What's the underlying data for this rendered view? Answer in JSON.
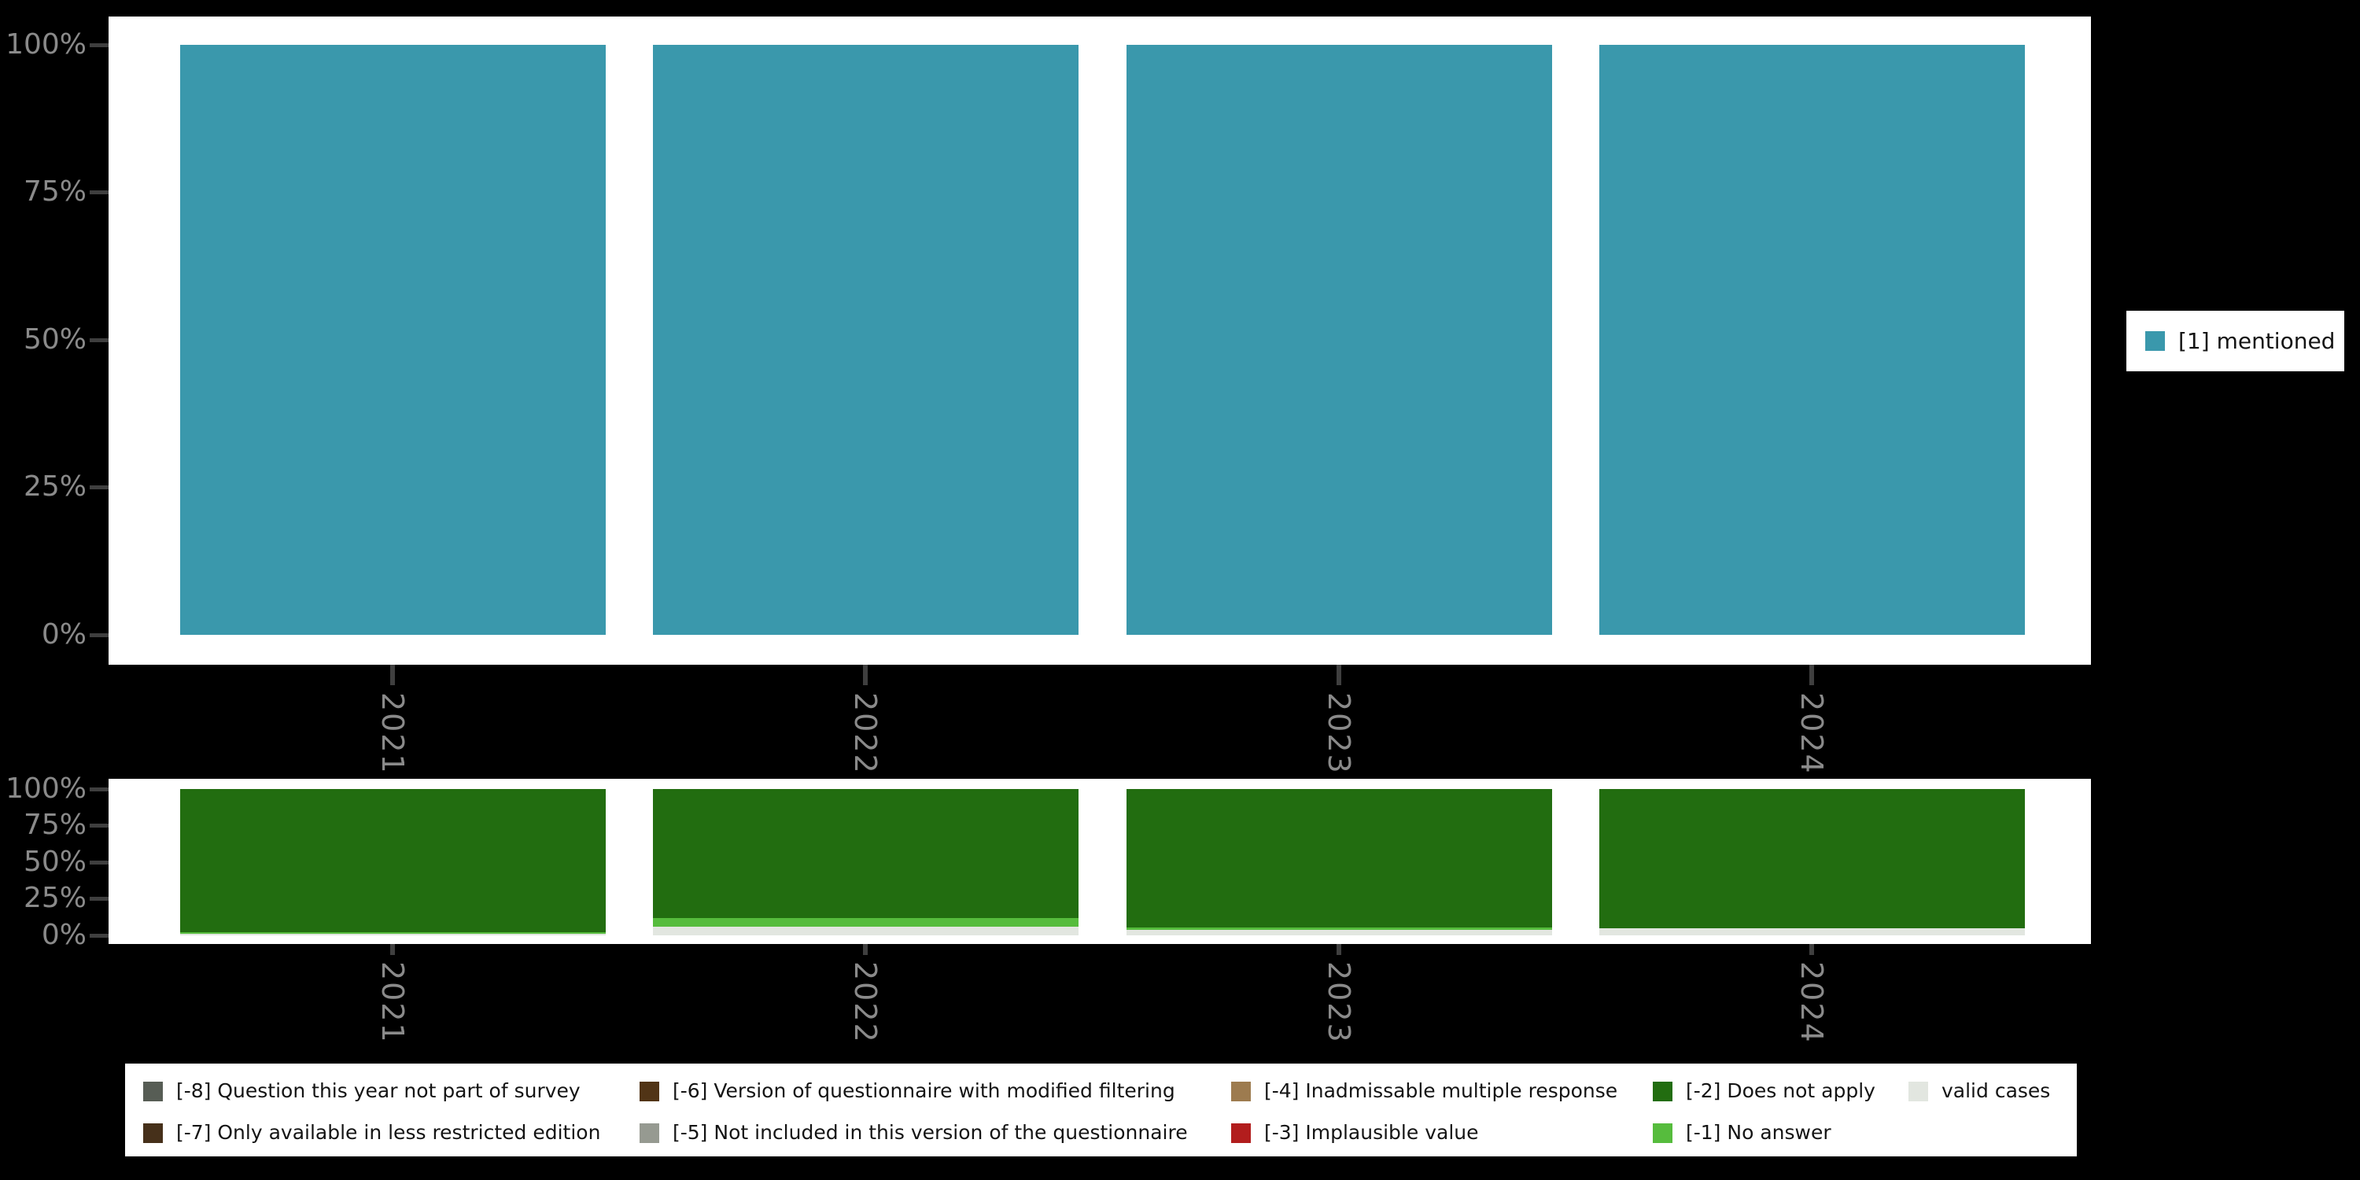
{
  "colors": {
    "background": "#000000",
    "panel": "#ffffff",
    "axis_text": "#8a8a8a",
    "tick": "#3f3f3f",
    "mentioned": "#3a98ac",
    "does_not_apply": "#226d10",
    "no_answer": "#56bc3d",
    "valid_cases": "#e2e6e0"
  },
  "top_legend": {
    "label": "[1] mentioned",
    "color": "#3a98ac"
  },
  "missing_legend": {
    "items": [
      {
        "label": "[-8] Question this year not part of survey",
        "color": "#575d55",
        "row": 0,
        "col": 0
      },
      {
        "label": "[-7] Only available in less restricted edition",
        "color": "#46301a",
        "row": 1,
        "col": 0
      },
      {
        "label": "[-6] Version of questionnaire with modified filtering",
        "color": "#513416",
        "row": 0,
        "col": 1
      },
      {
        "label": "[-5] Not included in this version of the questionnaire",
        "color": "#969a91",
        "row": 1,
        "col": 1
      },
      {
        "label": "[-4] Inadmissable multiple response",
        "color": "#9d7b4f",
        "row": 0,
        "col": 2
      },
      {
        "label": "[-3] Implausible value",
        "color": "#b21d1d",
        "row": 1,
        "col": 2
      },
      {
        "label": "[-2] Does not apply",
        "color": "#226d10",
        "row": 0,
        "col": 3
      },
      {
        "label": "[-1] No answer",
        "color": "#56bc3d",
        "row": 1,
        "col": 3
      },
      {
        "label": "valid cases",
        "color": "#e2e6e0",
        "row": 0,
        "col": 4
      }
    ]
  },
  "chart_data": [
    {
      "type": "bar",
      "stacked": true,
      "title": "",
      "categories": [
        "2021",
        "2022",
        "2023",
        "2024"
      ],
      "y_tick_labels": [
        "100%",
        "75%",
        "50%",
        "25%",
        "0%"
      ],
      "ylim": [
        0,
        100
      ],
      "grid": false,
      "legend_position": "right",
      "series": [
        {
          "name": "[1] mentioned",
          "color": "#3a98ac",
          "values": [
            100,
            100,
            100,
            100
          ]
        }
      ]
    },
    {
      "type": "bar",
      "stacked": true,
      "title": "",
      "categories": [
        "2021",
        "2022",
        "2023",
        "2024"
      ],
      "y_tick_labels": [
        "100%",
        "75%",
        "50%",
        "25%",
        "0%"
      ],
      "ylim": [
        0,
        100
      ],
      "grid": false,
      "legend_position": "bottom",
      "series": [
        {
          "name": "valid cases",
          "color": "#e2e6e0",
          "values": [
            1.1,
            5.9,
            3.8,
            4.8
          ]
        },
        {
          "name": "[-1] No answer",
          "color": "#56bc3d",
          "values": [
            1.1,
            5.9,
            1.6,
            0
          ]
        },
        {
          "name": "[-2] Does not apply",
          "color": "#226d10",
          "values": [
            97.8,
            88.2,
            94.6,
            95.2
          ]
        }
      ]
    }
  ]
}
